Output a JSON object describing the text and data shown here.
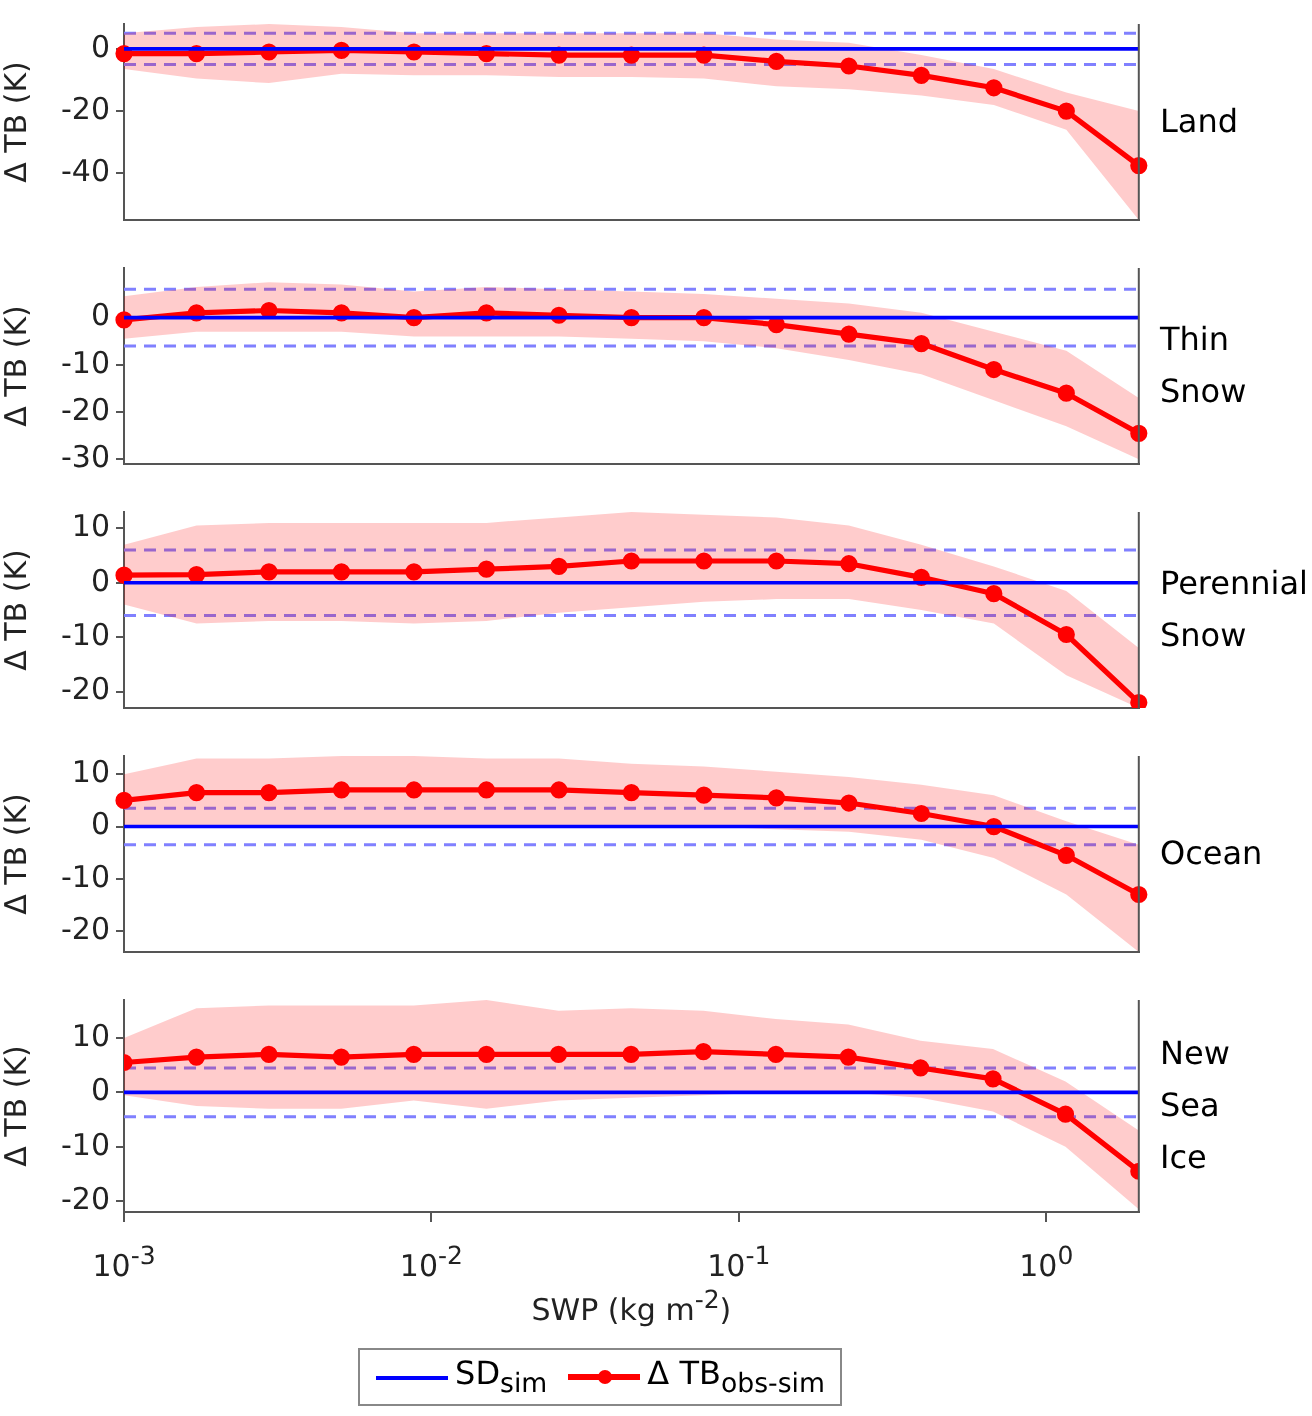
{
  "chart_data": [
    {
      "type": "line",
      "annotations": [
        "Land"
      ],
      "ylabel": "Δ TB (K)",
      "grid": false,
      "tick_labels": "y",
      "categories": [
        null,
        null,
        null,
        null,
        null,
        null,
        null,
        null,
        null,
        null,
        null,
        null,
        null,
        null,
        null
      ],
      "ylim": [
        -55,
        8
      ],
      "yticks": [
        -40,
        -20,
        0
      ],
      "ref_lines": [
        {
          "axis": "y",
          "value": 5,
          "color": "#8080ff",
          "line_style": "dashed"
        },
        {
          "axis": "y",
          "value": -5,
          "color": "#8080ff",
          "line_style": "dashed"
        }
      ],
      "series": [
        {
          "color": "#0000ff",
          "marker": "none",
          "values": [
            0,
            0,
            0,
            0,
            0,
            0,
            0,
            0,
            0,
            0,
            0,
            0,
            0,
            0,
            0
          ]
        },
        {
          "color": "#ff0000",
          "marker": "circle",
          "values": [
            -1.5,
            -1.5,
            -1,
            -0.5,
            -1,
            -1.5,
            -2,
            -2,
            -2,
            -4,
            -5.5,
            -8.5,
            -12.5,
            -20,
            -37.5
          ],
          "lower": [
            -6.5,
            -9.5,
            -11,
            -8,
            -8.5,
            -8.5,
            -9,
            -9,
            -9.5,
            -12,
            -13,
            -15,
            -18,
            -26,
            -55
          ],
          "upper": [
            5,
            7,
            8,
            7,
            5,
            5,
            5,
            5,
            5,
            3,
            2,
            -2,
            -6.5,
            -14,
            -20
          ]
        }
      ]
    },
    {
      "type": "line",
      "annotations": [
        "Thin Snow"
      ],
      "ylabel": "Δ TB (K)",
      "grid": false,
      "tick_labels": "y",
      "categories": [
        null,
        null,
        null,
        null,
        null,
        null,
        null,
        null,
        null,
        null,
        null,
        null,
        null,
        null,
        null
      ],
      "ylim": [
        -31,
        10.5
      ],
      "yticks": [
        -30,
        -20,
        -10,
        0
      ],
      "ref_lines": [
        {
          "axis": "y",
          "value": 6,
          "color": "#8080ff",
          "line_style": "dashed"
        },
        {
          "axis": "y",
          "value": -6,
          "color": "#8080ff",
          "line_style": "dashed"
        }
      ],
      "series": [
        {
          "color": "#0000ff",
          "marker": "none",
          "values": [
            0,
            0,
            0,
            0,
            0,
            0,
            0,
            0,
            0,
            0,
            0,
            0,
            0,
            0,
            0
          ]
        },
        {
          "color": "#ff0000",
          "marker": "circle",
          "values": [
            -0.5,
            1,
            1.5,
            1,
            0,
            1,
            0.5,
            0,
            0,
            -1.5,
            -3.5,
            -5.5,
            -11,
            -16,
            -24.5
          ],
          "lower": [
            -4.5,
            -3,
            -3,
            -3,
            -4,
            -4,
            -4,
            -4.5,
            -5,
            -6.5,
            -9,
            -12,
            -17.5,
            -23,
            -30
          ],
          "upper": [
            4.5,
            6.5,
            7.5,
            7,
            5.5,
            6.5,
            6,
            5.5,
            5,
            4,
            3,
            1,
            -3,
            -7,
            -17
          ]
        }
      ]
    },
    {
      "type": "line",
      "annotations": [
        "Perennial Snow"
      ],
      "ylabel": "Δ TB (K)",
      "grid": false,
      "tick_labels": "y",
      "categories": [
        null,
        null,
        null,
        null,
        null,
        null,
        null,
        null,
        null,
        null,
        null,
        null,
        null,
        null,
        null
      ],
      "ylim": [
        -23,
        13
      ],
      "yticks": [
        -20,
        -10,
        0,
        10
      ],
      "ref_lines": [
        {
          "axis": "y",
          "value": 6,
          "color": "#8080ff",
          "line_style": "dashed"
        },
        {
          "axis": "y",
          "value": -6,
          "color": "#8080ff",
          "line_style": "dashed"
        }
      ],
      "series": [
        {
          "color": "#0000ff",
          "marker": "none",
          "values": [
            0,
            0,
            0,
            0,
            0,
            0,
            0,
            0,
            0,
            0,
            0,
            0,
            0,
            0,
            0
          ]
        },
        {
          "color": "#ff0000",
          "marker": "circle",
          "values": [
            1.4,
            1.5,
            2,
            2,
            2,
            2.5,
            3,
            4,
            4,
            4,
            3.5,
            1,
            -2,
            -9.5,
            -22
          ],
          "lower": [
            -4,
            -7.5,
            -7,
            -7,
            -7.5,
            -7,
            -5.5,
            -4.5,
            -3.5,
            -3,
            -3,
            -5,
            -7.5,
            -17,
            -23
          ],
          "upper": [
            7,
            10.5,
            11,
            11,
            11,
            11,
            12,
            13,
            12.5,
            12,
            10.5,
            7,
            3,
            -1.5,
            -12
          ]
        }
      ]
    },
    {
      "type": "line",
      "annotations": [
        "Ocean"
      ],
      "ylabel": "Δ TB (K)",
      "grid": false,
      "tick_labels": "y",
      "categories": [
        null,
        null,
        null,
        null,
        null,
        null,
        null,
        null,
        null,
        null,
        null,
        null,
        null,
        null,
        null
      ],
      "ylim": [
        -24,
        13.5
      ],
      "yticks": [
        -20,
        -10,
        0,
        10
      ],
      "ref_lines": [
        {
          "axis": "y",
          "value": 3.5,
          "color": "#8080ff",
          "line_style": "dashed"
        },
        {
          "axis": "y",
          "value": -3.5,
          "color": "#8080ff",
          "line_style": "dashed"
        }
      ],
      "series": [
        {
          "color": "#0000ff",
          "marker": "none",
          "values": [
            0,
            0,
            0,
            0,
            0,
            0,
            0,
            0,
            0,
            0,
            0,
            0,
            0,
            0,
            0
          ]
        },
        {
          "color": "#ff0000",
          "marker": "circle",
          "values": [
            5,
            6.5,
            6.5,
            7,
            7,
            7,
            7,
            6.5,
            6,
            5.5,
            4.5,
            2.5,
            0,
            -5.5,
            -13
          ],
          "lower": [
            0,
            0,
            0,
            0,
            0,
            0,
            0,
            0,
            0,
            -0.5,
            -1,
            -2.5,
            -6,
            -13,
            -24
          ],
          "upper": [
            10,
            13,
            13,
            13.5,
            13.5,
            13,
            13,
            12,
            11.5,
            10.5,
            9.5,
            8,
            6,
            1,
            -3.5
          ]
        }
      ]
    },
    {
      "type": "line",
      "annotations": [
        "New Sea Ice"
      ],
      "ylabel": "Δ TB (K)",
      "xlabel": "SWP (kg m$^{-2}$)",
      "log": "x",
      "grid": false,
      "legend": "bottom",
      "x": [
        0.001,
        0.00172,
        0.00296,
        0.00509,
        0.00876,
        0.0151,
        0.0259,
        0.0446,
        0.0767,
        0.132,
        0.227,
        0.39,
        0.671,
        1.155,
        2
      ],
      "xlim": [
        0.001,
        2
      ],
      "xticks": [
        {
          "value": 0.001,
          "label": "10$^{-3}$"
        },
        {
          "value": 0.01,
          "label": "10$^{-2}$"
        },
        {
          "value": 0.1,
          "label": "10$^{-1}$"
        },
        {
          "value": 1,
          "label": "10$^{0}$"
        }
      ],
      "ylim": [
        -22,
        17
      ],
      "yticks": [
        -20,
        -10,
        0,
        10
      ],
      "ref_lines": [
        {
          "axis": "y",
          "value": 4.5,
          "color": "#8080ff",
          "line_style": "dashed"
        },
        {
          "axis": "y",
          "value": -4.5,
          "color": "#8080ff",
          "line_style": "dashed"
        }
      ],
      "series": [
        {
          "name": "SD$_{sim}$",
          "color": "#0000ff",
          "marker": "none",
          "values": [
            0,
            0,
            0,
            0,
            0,
            0,
            0,
            0,
            0,
            0,
            0,
            0,
            0,
            0,
            0
          ]
        },
        {
          "name": "Δ TB$_{obs-sim}$",
          "color": "#ff0000",
          "marker": "circle",
          "values": [
            5.5,
            6.5,
            7,
            6.5,
            7,
            7,
            7,
            7,
            7.5,
            7,
            6.5,
            4.5,
            2.5,
            -4,
            -14.5
          ],
          "lower": [
            -0.5,
            -2.5,
            -3,
            -3,
            -1.5,
            -3,
            -1.5,
            -1,
            -0.5,
            0,
            0,
            -1,
            -3.5,
            -10,
            -21.5
          ],
          "upper": [
            10,
            15.5,
            16,
            16,
            16,
            17,
            15,
            15.5,
            15,
            13.5,
            12.5,
            9.5,
            8,
            2,
            -7
          ]
        }
      ]
    }
  ]
}
